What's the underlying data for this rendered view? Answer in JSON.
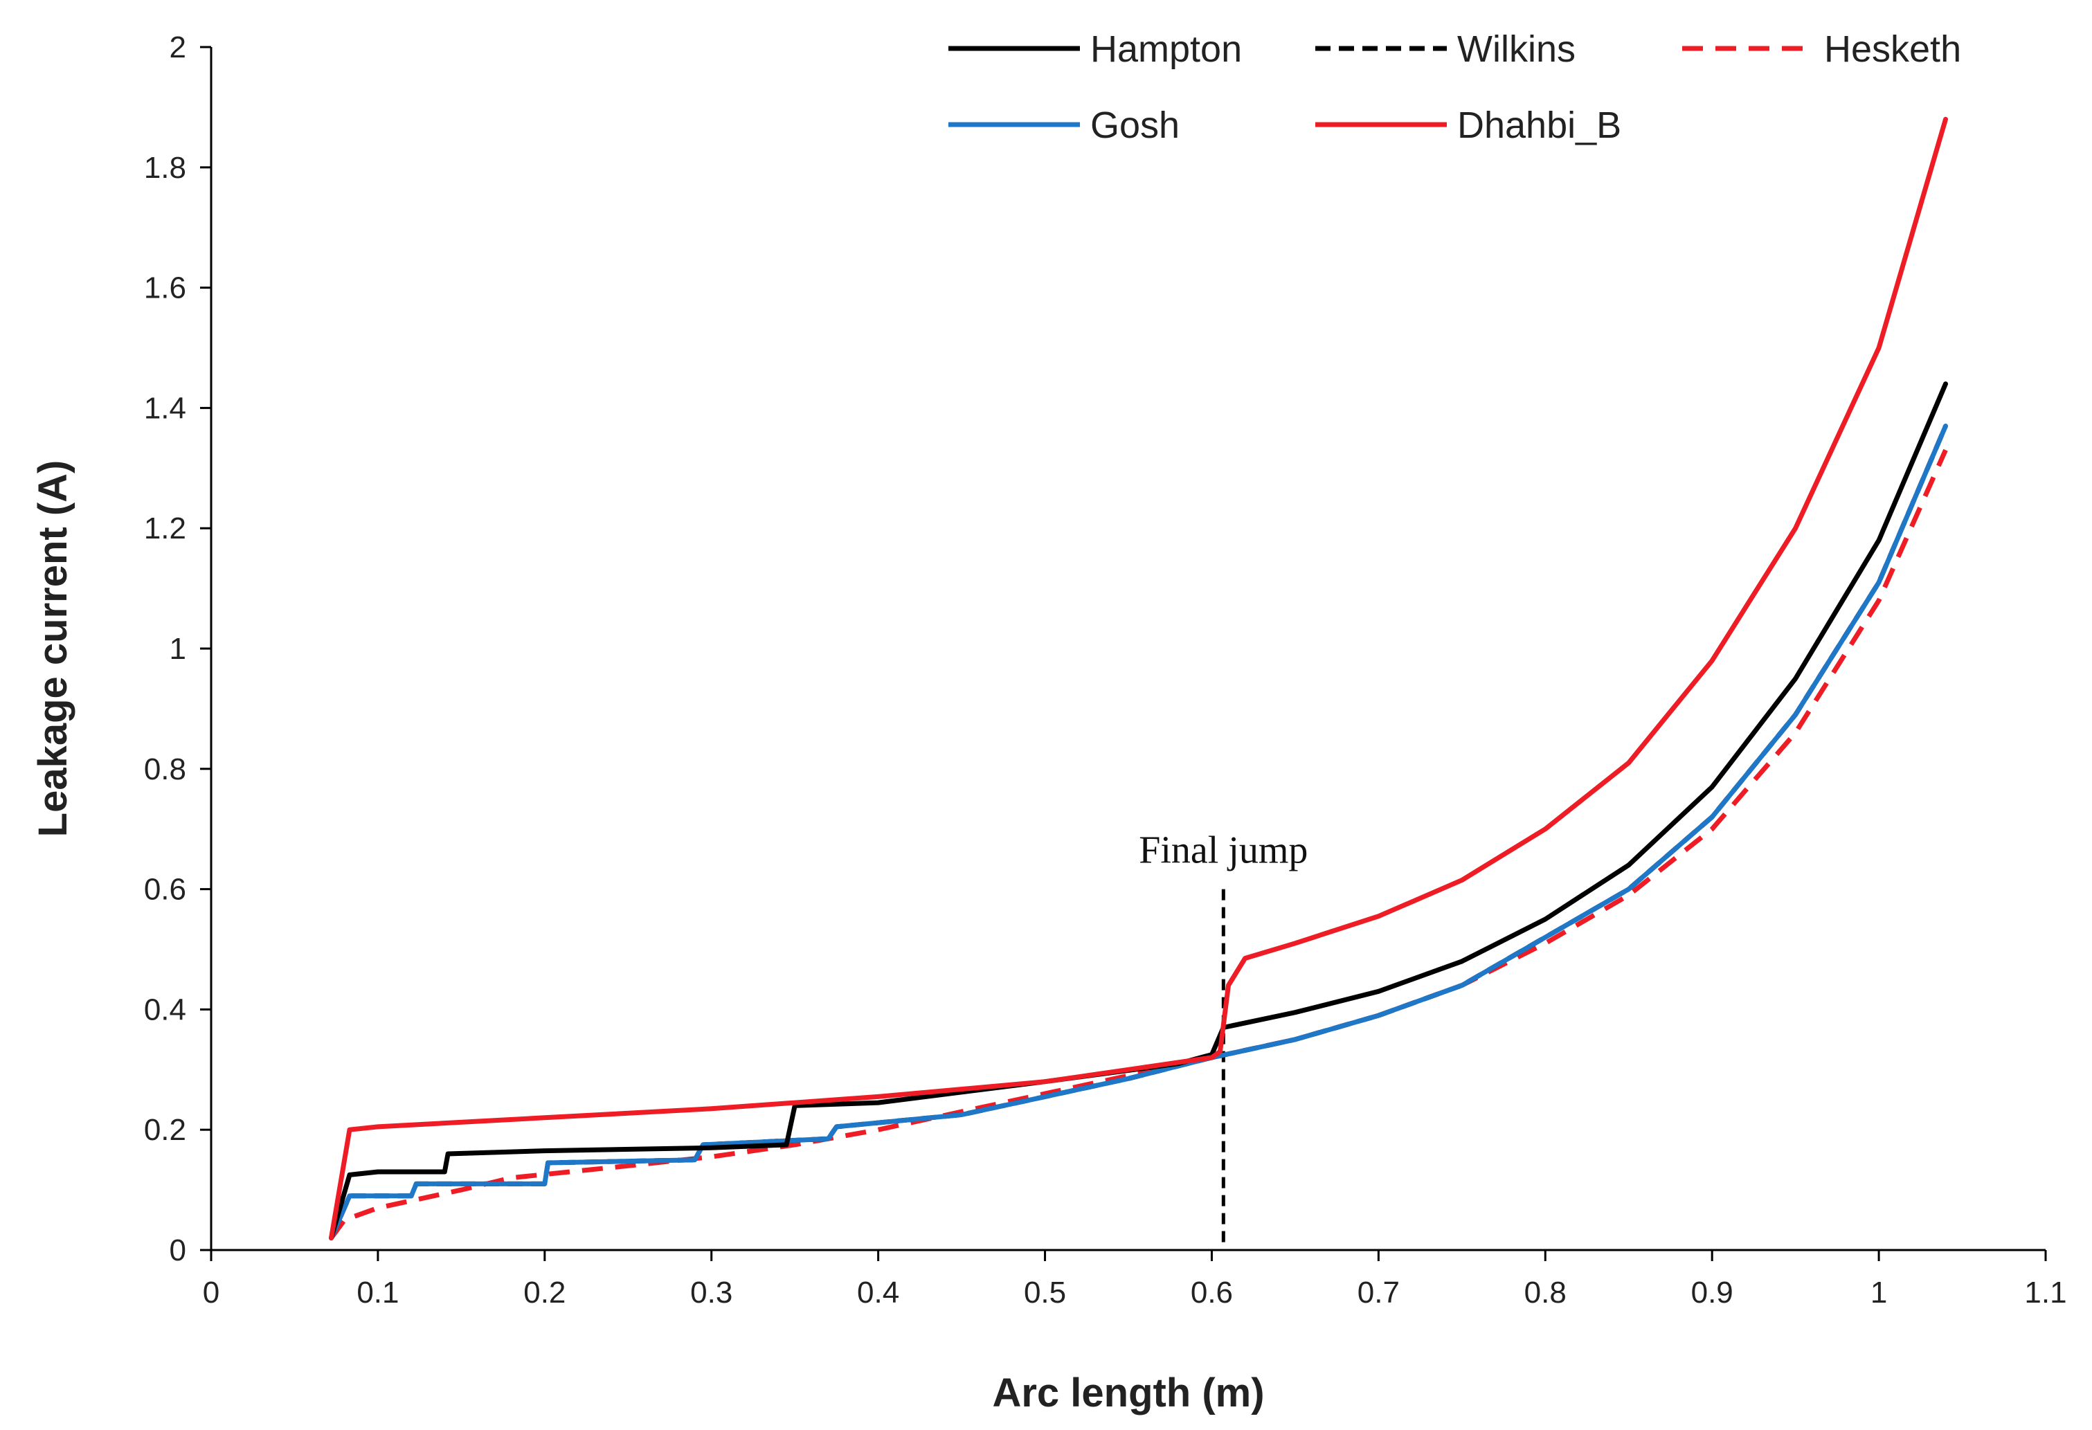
{
  "chart_data": {
    "type": "line",
    "title": "",
    "xlabel": "Arc length (m)",
    "ylabel": "Leakage current (A)",
    "xlim": [
      0,
      1.1
    ],
    "ylim": [
      0,
      2
    ],
    "xticks": [
      "0",
      "0.1",
      "0.2",
      "0.3",
      "0.4",
      "0.5",
      "0.6",
      "0.7",
      "0.8",
      "0.9",
      "1",
      "1.1"
    ],
    "yticks": [
      "0",
      "0.2",
      "0.4",
      "0.6",
      "0.8",
      "1",
      "1.2",
      "1.4",
      "1.6",
      "1.8",
      "2"
    ],
    "legend_position": "top-right",
    "annotation": {
      "text": "Final jump",
      "x": 0.607,
      "y_from": 0,
      "y_to": 0.6
    },
    "series": [
      {
        "name": "Hampton",
        "color": "#000000",
        "dash": "solid",
        "points": [
          [
            0.072,
            0.02
          ],
          [
            0.083,
            0.125
          ],
          [
            0.1,
            0.13
          ],
          [
            0.14,
            0.13
          ],
          [
            0.142,
            0.16
          ],
          [
            0.2,
            0.165
          ],
          [
            0.3,
            0.17
          ],
          [
            0.345,
            0.175
          ],
          [
            0.35,
            0.24
          ],
          [
            0.4,
            0.245
          ],
          [
            0.5,
            0.28
          ],
          [
            0.58,
            0.31
          ],
          [
            0.6,
            0.325
          ],
          [
            0.607,
            0.37
          ],
          [
            0.65,
            0.395
          ],
          [
            0.7,
            0.43
          ],
          [
            0.75,
            0.48
          ],
          [
            0.8,
            0.55
          ],
          [
            0.85,
            0.64
          ],
          [
            0.9,
            0.77
          ],
          [
            0.95,
            0.95
          ],
          [
            1.0,
            1.18
          ],
          [
            1.04,
            1.44
          ]
        ]
      },
      {
        "name": "Wilkins",
        "color": "#000000",
        "dash": "dashed",
        "points": [
          [
            0.072,
            0.02
          ],
          [
            0.083,
            0.09
          ],
          [
            0.12,
            0.09
          ],
          [
            0.123,
            0.11
          ],
          [
            0.2,
            0.11
          ],
          [
            0.202,
            0.145
          ],
          [
            0.29,
            0.15
          ],
          [
            0.295,
            0.175
          ],
          [
            0.37,
            0.185
          ],
          [
            0.375,
            0.205
          ],
          [
            0.45,
            0.225
          ],
          [
            0.5,
            0.255
          ],
          [
            0.55,
            0.285
          ],
          [
            0.6,
            0.32
          ],
          [
            0.65,
            0.35
          ],
          [
            0.7,
            0.39
          ],
          [
            0.75,
            0.44
          ],
          [
            0.8,
            0.52
          ],
          [
            0.85,
            0.6
          ],
          [
            0.9,
            0.72
          ],
          [
            0.95,
            0.89
          ],
          [
            1.0,
            1.11
          ],
          [
            1.04,
            1.37
          ]
        ]
      },
      {
        "name": "Hesketh",
        "color": "#ee1c24",
        "dash": "dashed",
        "points": [
          [
            0.072,
            0.02
          ],
          [
            0.08,
            0.05
          ],
          [
            0.1,
            0.07
          ],
          [
            0.15,
            0.1
          ],
          [
            0.18,
            0.12
          ],
          [
            0.25,
            0.14
          ],
          [
            0.3,
            0.155
          ],
          [
            0.35,
            0.175
          ],
          [
            0.4,
            0.2
          ],
          [
            0.45,
            0.23
          ],
          [
            0.5,
            0.26
          ],
          [
            0.55,
            0.29
          ],
          [
            0.6,
            0.32
          ],
          [
            0.65,
            0.35
          ],
          [
            0.7,
            0.39
          ],
          [
            0.75,
            0.44
          ],
          [
            0.8,
            0.51
          ],
          [
            0.85,
            0.59
          ],
          [
            0.9,
            0.7
          ],
          [
            0.95,
            0.86
          ],
          [
            1.0,
            1.08
          ],
          [
            1.04,
            1.33
          ]
        ]
      },
      {
        "name": "Gosh",
        "color": "#1f77c8",
        "dash": "solid",
        "points": [
          [
            0.072,
            0.02
          ],
          [
            0.083,
            0.09
          ],
          [
            0.12,
            0.09
          ],
          [
            0.123,
            0.11
          ],
          [
            0.2,
            0.11
          ],
          [
            0.202,
            0.145
          ],
          [
            0.29,
            0.15
          ],
          [
            0.295,
            0.175
          ],
          [
            0.37,
            0.185
          ],
          [
            0.375,
            0.205
          ],
          [
            0.45,
            0.225
          ],
          [
            0.5,
            0.255
          ],
          [
            0.55,
            0.285
          ],
          [
            0.6,
            0.32
          ],
          [
            0.65,
            0.35
          ],
          [
            0.7,
            0.39
          ],
          [
            0.75,
            0.44
          ],
          [
            0.8,
            0.52
          ],
          [
            0.85,
            0.6
          ],
          [
            0.9,
            0.72
          ],
          [
            0.95,
            0.89
          ],
          [
            1.0,
            1.11
          ],
          [
            1.04,
            1.37
          ]
        ]
      },
      {
        "name": "Dhahbi_B",
        "color": "#ee1c24",
        "dash": "solid",
        "points": [
          [
            0.072,
            0.02
          ],
          [
            0.083,
            0.2
          ],
          [
            0.1,
            0.205
          ],
          [
            0.2,
            0.22
          ],
          [
            0.3,
            0.235
          ],
          [
            0.4,
            0.255
          ],
          [
            0.5,
            0.28
          ],
          [
            0.6,
            0.32
          ],
          [
            0.605,
            0.33
          ],
          [
            0.61,
            0.44
          ],
          [
            0.62,
            0.485
          ],
          [
            0.65,
            0.51
          ],
          [
            0.7,
            0.555
          ],
          [
            0.75,
            0.615
          ],
          [
            0.8,
            0.7
          ],
          [
            0.85,
            0.81
          ],
          [
            0.9,
            0.98
          ],
          [
            0.95,
            1.2
          ],
          [
            1.0,
            1.5
          ],
          [
            1.04,
            1.88
          ]
        ]
      }
    ]
  }
}
